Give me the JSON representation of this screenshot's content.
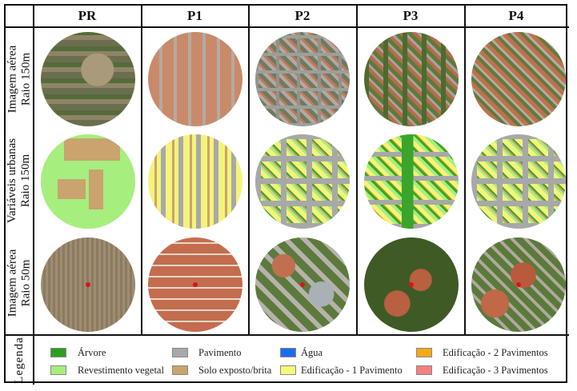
{
  "columns": [
    "PR",
    "P1",
    "P2",
    "P3",
    "P4"
  ],
  "rows": [
    {
      "line1": "Imagem aérea",
      "line2": "Raio 150m"
    },
    {
      "line1": "Variáveis urbanas",
      "line2": "Raio 150m"
    },
    {
      "line1": "Imagem aérea",
      "line2": "Raio 50m"
    }
  ],
  "legend": {
    "title": "Legenda",
    "items": [
      {
        "label": "Árvore",
        "color": "#2e9e1e"
      },
      {
        "label": "Revestimento vegetal",
        "color": "#a6ee7e"
      },
      {
        "label": "Pavimento",
        "color": "#a8a8a8"
      },
      {
        "label": "Solo exposto/brita",
        "color": "#c9a46e"
      },
      {
        "label": "Água",
        "color": "#1a6cf0"
      },
      {
        "label": "Edificação - 1 Pavimento",
        "color": "#f9f77a"
      },
      {
        "label": "Edificação - 2 Pavimentos",
        "color": "#f9a71a"
      },
      {
        "label": "Edificação - 3 Pavimentos",
        "color": "#f48080"
      }
    ]
  }
}
